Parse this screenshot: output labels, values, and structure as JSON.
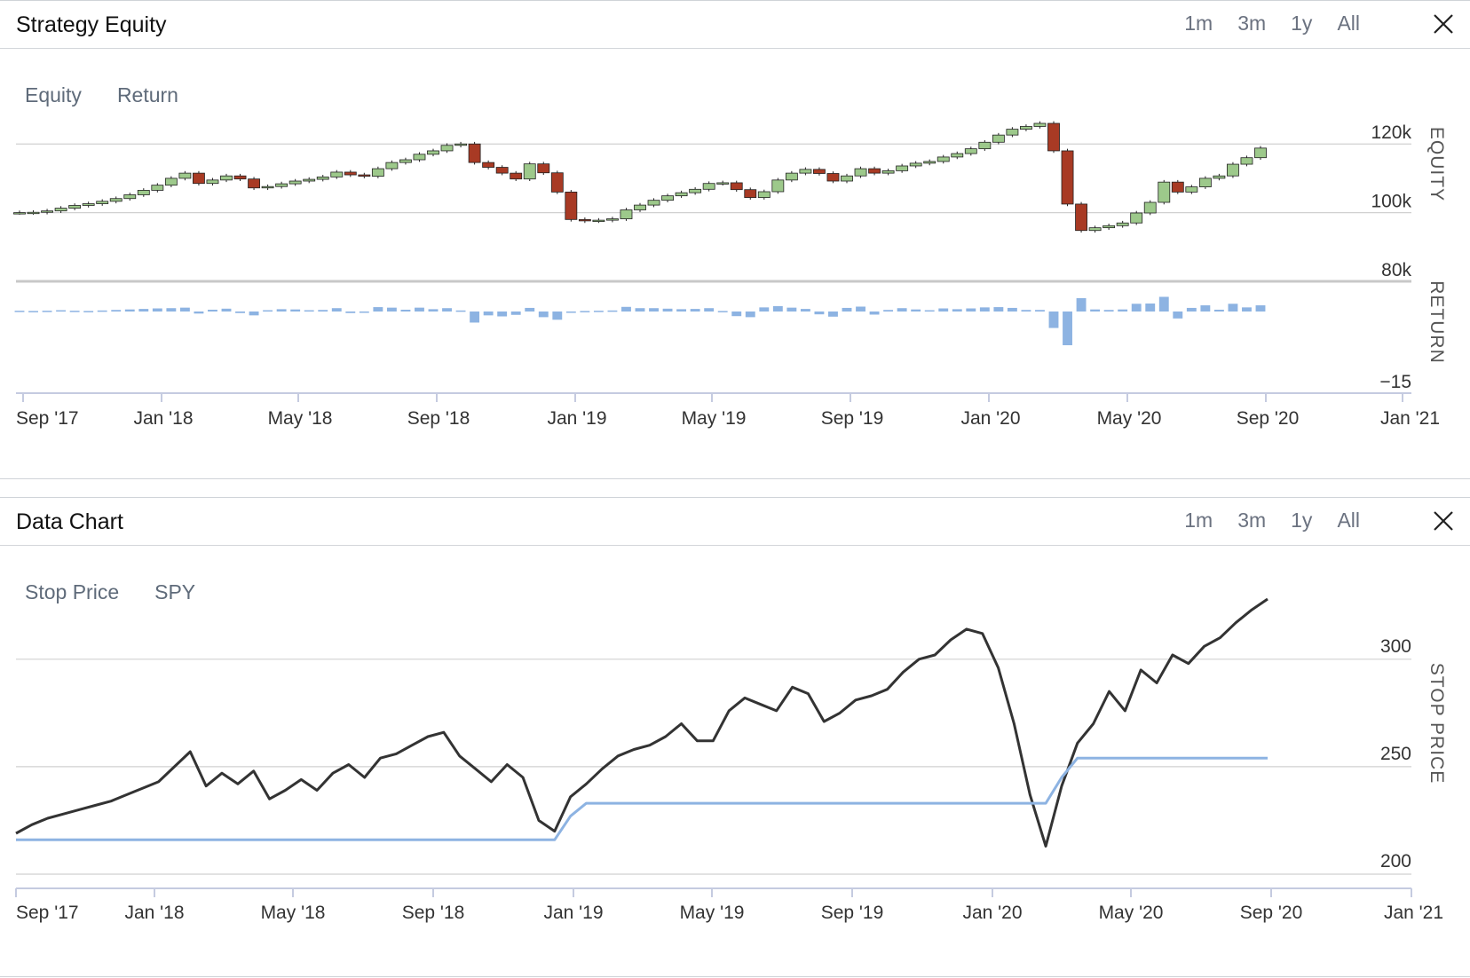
{
  "panels": {
    "equity": {
      "title": "Strategy Equity",
      "ranges": [
        "1m",
        "3m",
        "1y",
        "All"
      ],
      "legend": [
        "Equity",
        "Return"
      ]
    },
    "data": {
      "title": "Data Chart",
      "ranges": [
        "1m",
        "3m",
        "1y",
        "All"
      ],
      "legend": [
        "Stop Price",
        "SPY"
      ]
    }
  },
  "colors": {
    "up_candle": "#9dc98b",
    "down_candle": "#a83a24",
    "return_bar": "#8db3e2",
    "spy_line": "#333333",
    "stop_line": "#8db3e2",
    "grid": "#cccccc"
  },
  "chart_data": [
    {
      "type": "candlestick",
      "name": "Strategy Equity",
      "ylabel": "EQUITY",
      "y_ticks": [
        "80k",
        "100k",
        "120k"
      ],
      "ylim": [
        80000,
        126000
      ],
      "x_ticks": [
        "Sep '17",
        "Jan '18",
        "May '18",
        "Sep '18",
        "Jan '19",
        "May '19",
        "Sep '19",
        "Jan '20",
        "May '20",
        "Sep '20",
        "Jan '21"
      ],
      "equity_close": [
        100000,
        100100,
        100500,
        101300,
        102100,
        102600,
        103300,
        104100,
        105200,
        106500,
        108000,
        110000,
        111500,
        108500,
        109500,
        110700,
        109800,
        107200,
        107600,
        108400,
        109200,
        109700,
        110400,
        111800,
        111000,
        110600,
        112800,
        114600,
        115400,
        117000,
        118000,
        119600,
        120000,
        114600,
        113200,
        111500,
        109800,
        114200,
        111600,
        106000,
        98000,
        97600,
        97800,
        98200,
        100800,
        102200,
        103600,
        104900,
        105800,
        106800,
        108500,
        108700,
        106700,
        104400,
        106100,
        109500,
        111500,
        112600,
        111400,
        109200,
        110700,
        112800,
        111500,
        112200,
        113600,
        114400,
        114900,
        116200,
        117200,
        118600,
        120500,
        122600,
        124300,
        125100,
        126000,
        118000,
        102500,
        94800,
        95600,
        96200,
        97000,
        99900,
        103000,
        108900,
        106000,
        107500,
        110000,
        110700,
        114100,
        116000,
        118800
      ],
      "return_bars": [
        0.3,
        0.2,
        0.3,
        0.5,
        0.3,
        0.2,
        0.4,
        0.6,
        0.8,
        1.0,
        1.2,
        1.3,
        1.5,
        -0.8,
        0.7,
        1.1,
        -0.6,
        -1.5,
        0.5,
        0.9,
        0.8,
        0.5,
        0.6,
        1.3,
        -0.6,
        -0.5,
        1.7,
        1.5,
        0.7,
        1.5,
        0.9,
        1.3,
        0.4,
        -4.3,
        -1.5,
        -1.9,
        -1.3,
        1.4,
        -2.2,
        -3.2,
        -0.3,
        0.2,
        0.3,
        0.4,
        1.8,
        1.3,
        1.3,
        1.1,
        0.9,
        1.0,
        1.3,
        0.2,
        -1.8,
        -2.2,
        1.6,
        2.1,
        1.5,
        1.0,
        -1.1,
        -2.0,
        1.4,
        1.9,
        -1.2,
        0.6,
        1.3,
        0.8,
        0.5,
        1.2,
        0.9,
        1.2,
        1.6,
        1.7,
        1.4,
        0.6,
        0.6,
        -6.4,
        -13.1,
        5.2,
        0.8,
        0.6,
        0.8,
        3.0,
        3.1,
        5.7,
        -2.7,
        1.4,
        2.4,
        0.7,
        3.0,
        1.6,
        2.4
      ],
      "return_ylabel": "RETURN",
      "return_ytick": "−15"
    },
    {
      "type": "line",
      "name": "Data Chart",
      "ylabel": "STOP PRICE",
      "y_ticks": [
        "200",
        "250",
        "300"
      ],
      "ylim": [
        200,
        328
      ],
      "x_ticks": [
        "Sep '17",
        "Jan '18",
        "May '18",
        "Sep '18",
        "Jan '19",
        "May '19",
        "Sep '19",
        "Jan '20",
        "May '20",
        "Sep '20",
        "Jan '21"
      ],
      "series": [
        {
          "name": "SPY",
          "values": [
            219,
            223,
            226,
            228,
            230,
            232,
            234,
            237,
            240,
            243,
            250,
            257,
            241,
            247,
            242,
            248,
            235,
            239,
            244,
            239,
            247,
            251,
            245,
            254,
            256,
            260,
            264,
            266,
            255,
            249,
            243,
            251,
            245,
            225,
            220,
            236,
            242,
            249,
            255,
            258,
            260,
            264,
            270,
            262,
            262,
            276,
            282,
            279,
            276,
            287,
            284,
            271,
            275,
            281,
            283,
            286,
            294,
            300,
            302,
            309,
            314,
            312,
            296,
            270,
            237,
            213,
            241,
            261,
            270,
            285,
            276,
            295,
            289,
            302,
            298,
            306,
            310,
            317,
            323,
            328
          ]
        },
        {
          "name": "Stop Price",
          "values": [
            216,
            216,
            216,
            216,
            216,
            216,
            216,
            216,
            216,
            216,
            216,
            216,
            216,
            216,
            216,
            216,
            216,
            216,
            216,
            216,
            216,
            216,
            216,
            216,
            216,
            216,
            216,
            216,
            216,
            216,
            216,
            216,
            216,
            216,
            216,
            227,
            233,
            233,
            233,
            233,
            233,
            233,
            233,
            233,
            233,
            233,
            233,
            233,
            233,
            233,
            233,
            233,
            233,
            233,
            233,
            233,
            233,
            233,
            233,
            233,
            233,
            233,
            233,
            233,
            233,
            233,
            245,
            254,
            254,
            254,
            254,
            254,
            254,
            254,
            254,
            254,
            254,
            254,
            254,
            254
          ]
        }
      ]
    }
  ]
}
